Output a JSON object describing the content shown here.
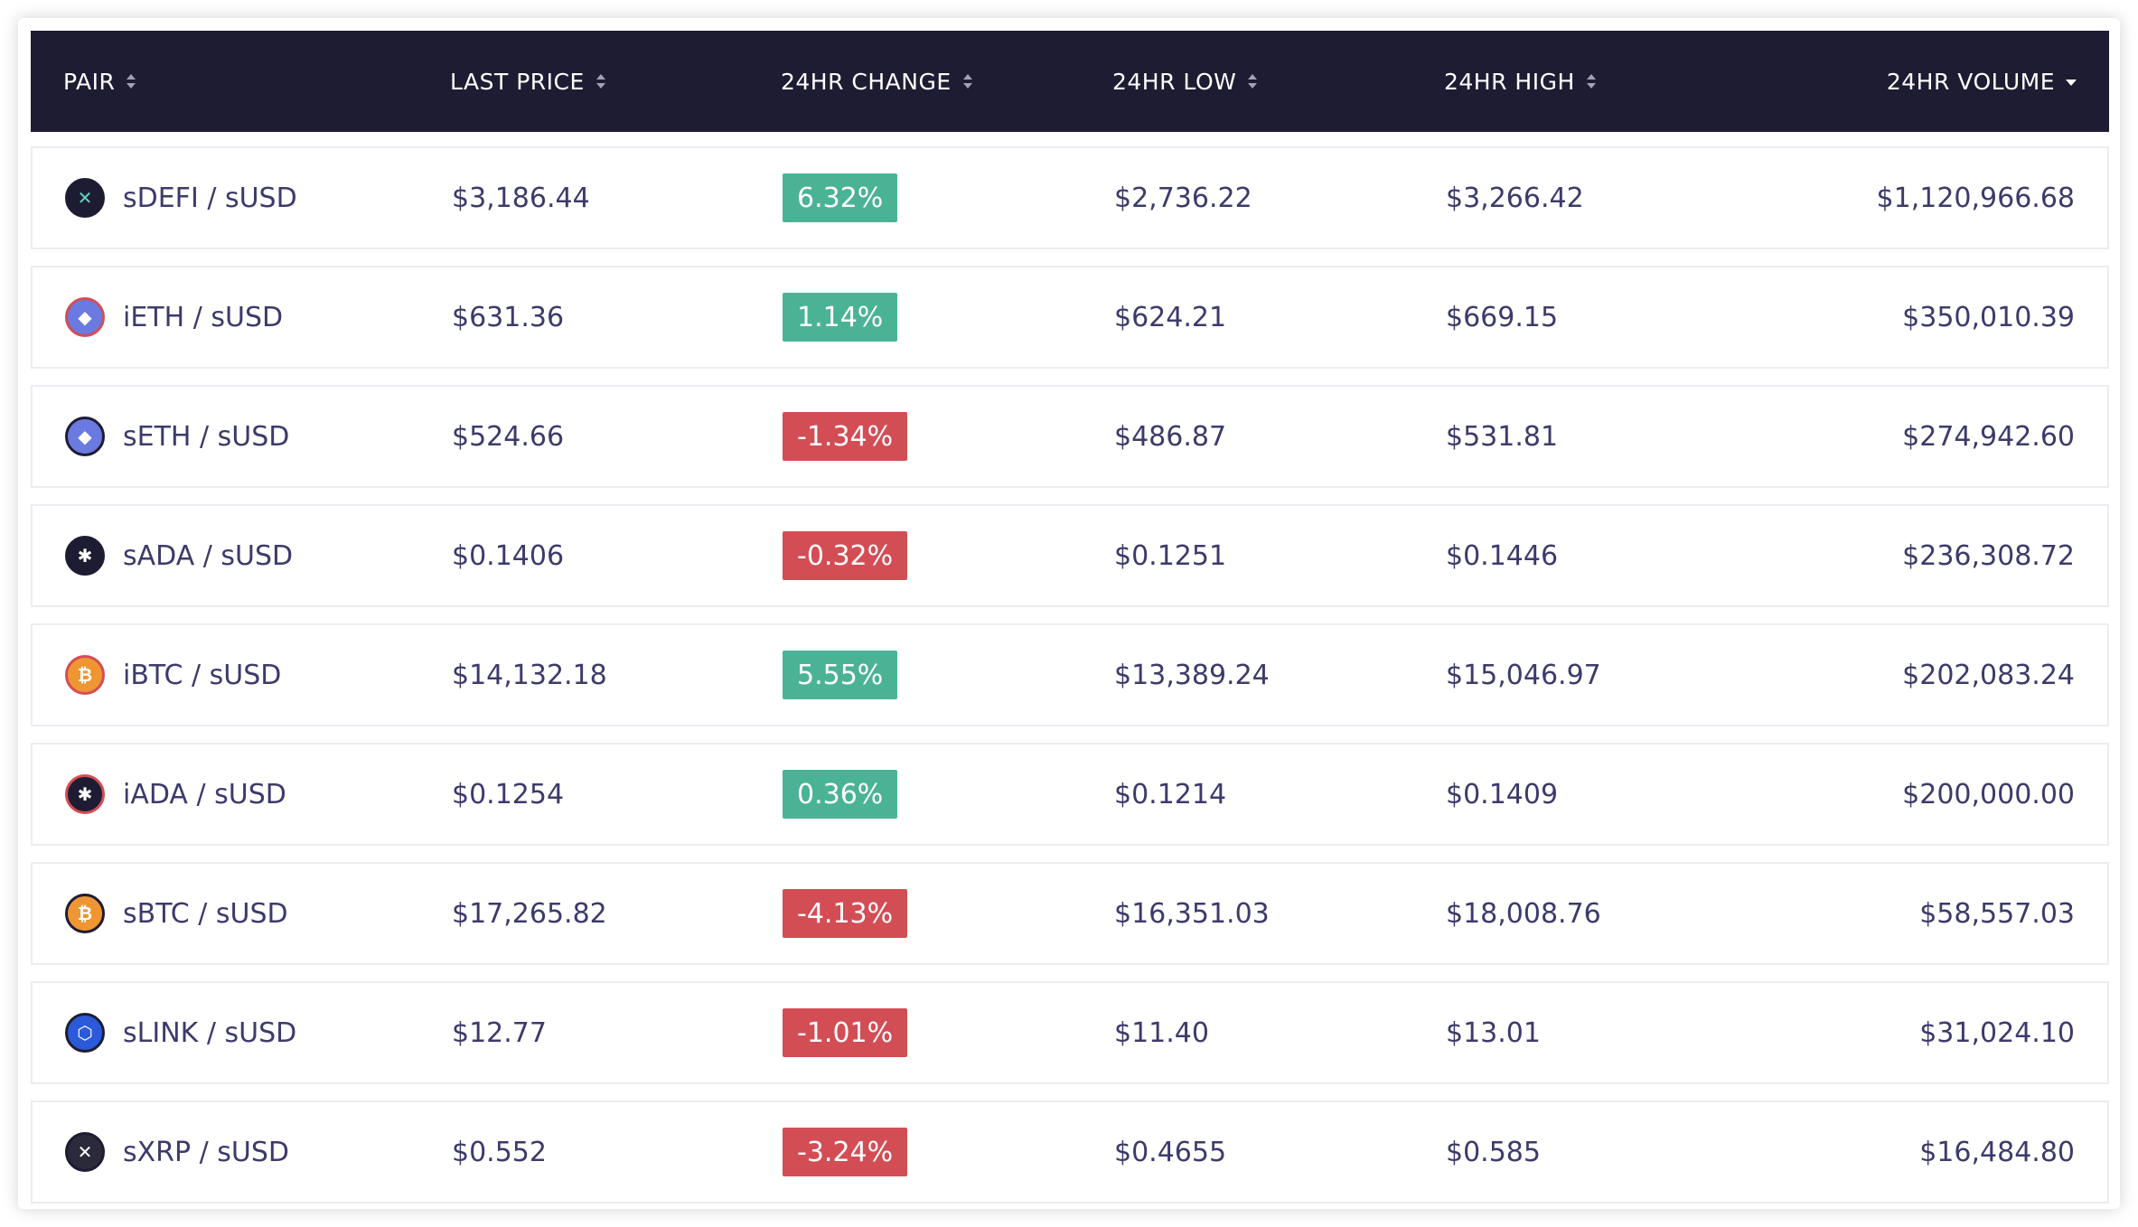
{
  "colors": {
    "header_bg": "#1e1c33",
    "text": "#3d3a6b",
    "positive": "#4bb395",
    "negative": "#d34d55"
  },
  "header": {
    "pair": "PAIR",
    "last_price": "LAST PRICE",
    "change": "24HR CHANGE",
    "low": "24HR LOW",
    "high": "24HR HIGH",
    "volume": "24HR VOLUME"
  },
  "rows": [
    {
      "icon": "defi-icon",
      "pair": "sDEFI / sUSD",
      "last_price": "$3,186.44",
      "change": "6.32%",
      "direction": "up",
      "low": "$2,736.22",
      "high": "$3,266.42",
      "volume": "$1,120,966.68"
    },
    {
      "icon": "eth-inverse-icon",
      "pair": "iETH / sUSD",
      "last_price": "$631.36",
      "change": "1.14%",
      "direction": "up",
      "low": "$624.21",
      "high": "$669.15",
      "volume": "$350,010.39"
    },
    {
      "icon": "eth-icon",
      "pair": "sETH / sUSD",
      "last_price": "$524.66",
      "change": "-1.34%",
      "direction": "down",
      "low": "$486.87",
      "high": "$531.81",
      "volume": "$274,942.60"
    },
    {
      "icon": "ada-icon",
      "pair": "sADA / sUSD",
      "last_price": "$0.1406",
      "change": "-0.32%",
      "direction": "down",
      "low": "$0.1251",
      "high": "$0.1446",
      "volume": "$236,308.72"
    },
    {
      "icon": "btc-inverse-icon",
      "pair": "iBTC / sUSD",
      "last_price": "$14,132.18",
      "change": "5.55%",
      "direction": "up",
      "low": "$13,389.24",
      "high": "$15,046.97",
      "volume": "$202,083.24"
    },
    {
      "icon": "ada-inverse-icon",
      "pair": "iADA / sUSD",
      "last_price": "$0.1254",
      "change": "0.36%",
      "direction": "up",
      "low": "$0.1214",
      "high": "$0.1409",
      "volume": "$200,000.00"
    },
    {
      "icon": "btc-icon",
      "pair": "sBTC / sUSD",
      "last_price": "$17,265.82",
      "change": "-4.13%",
      "direction": "down",
      "low": "$16,351.03",
      "high": "$18,008.76",
      "volume": "$58,557.03"
    },
    {
      "icon": "link-icon",
      "pair": "sLINK / sUSD",
      "last_price": "$12.77",
      "change": "-1.01%",
      "direction": "down",
      "low": "$11.40",
      "high": "$13.01",
      "volume": "$31,024.10"
    },
    {
      "icon": "xrp-icon",
      "pair": "sXRP / sUSD",
      "last_price": "$0.552",
      "change": "-3.24%",
      "direction": "down",
      "low": "$0.4655",
      "high": "$0.585",
      "volume": "$16,484.80"
    }
  ]
}
